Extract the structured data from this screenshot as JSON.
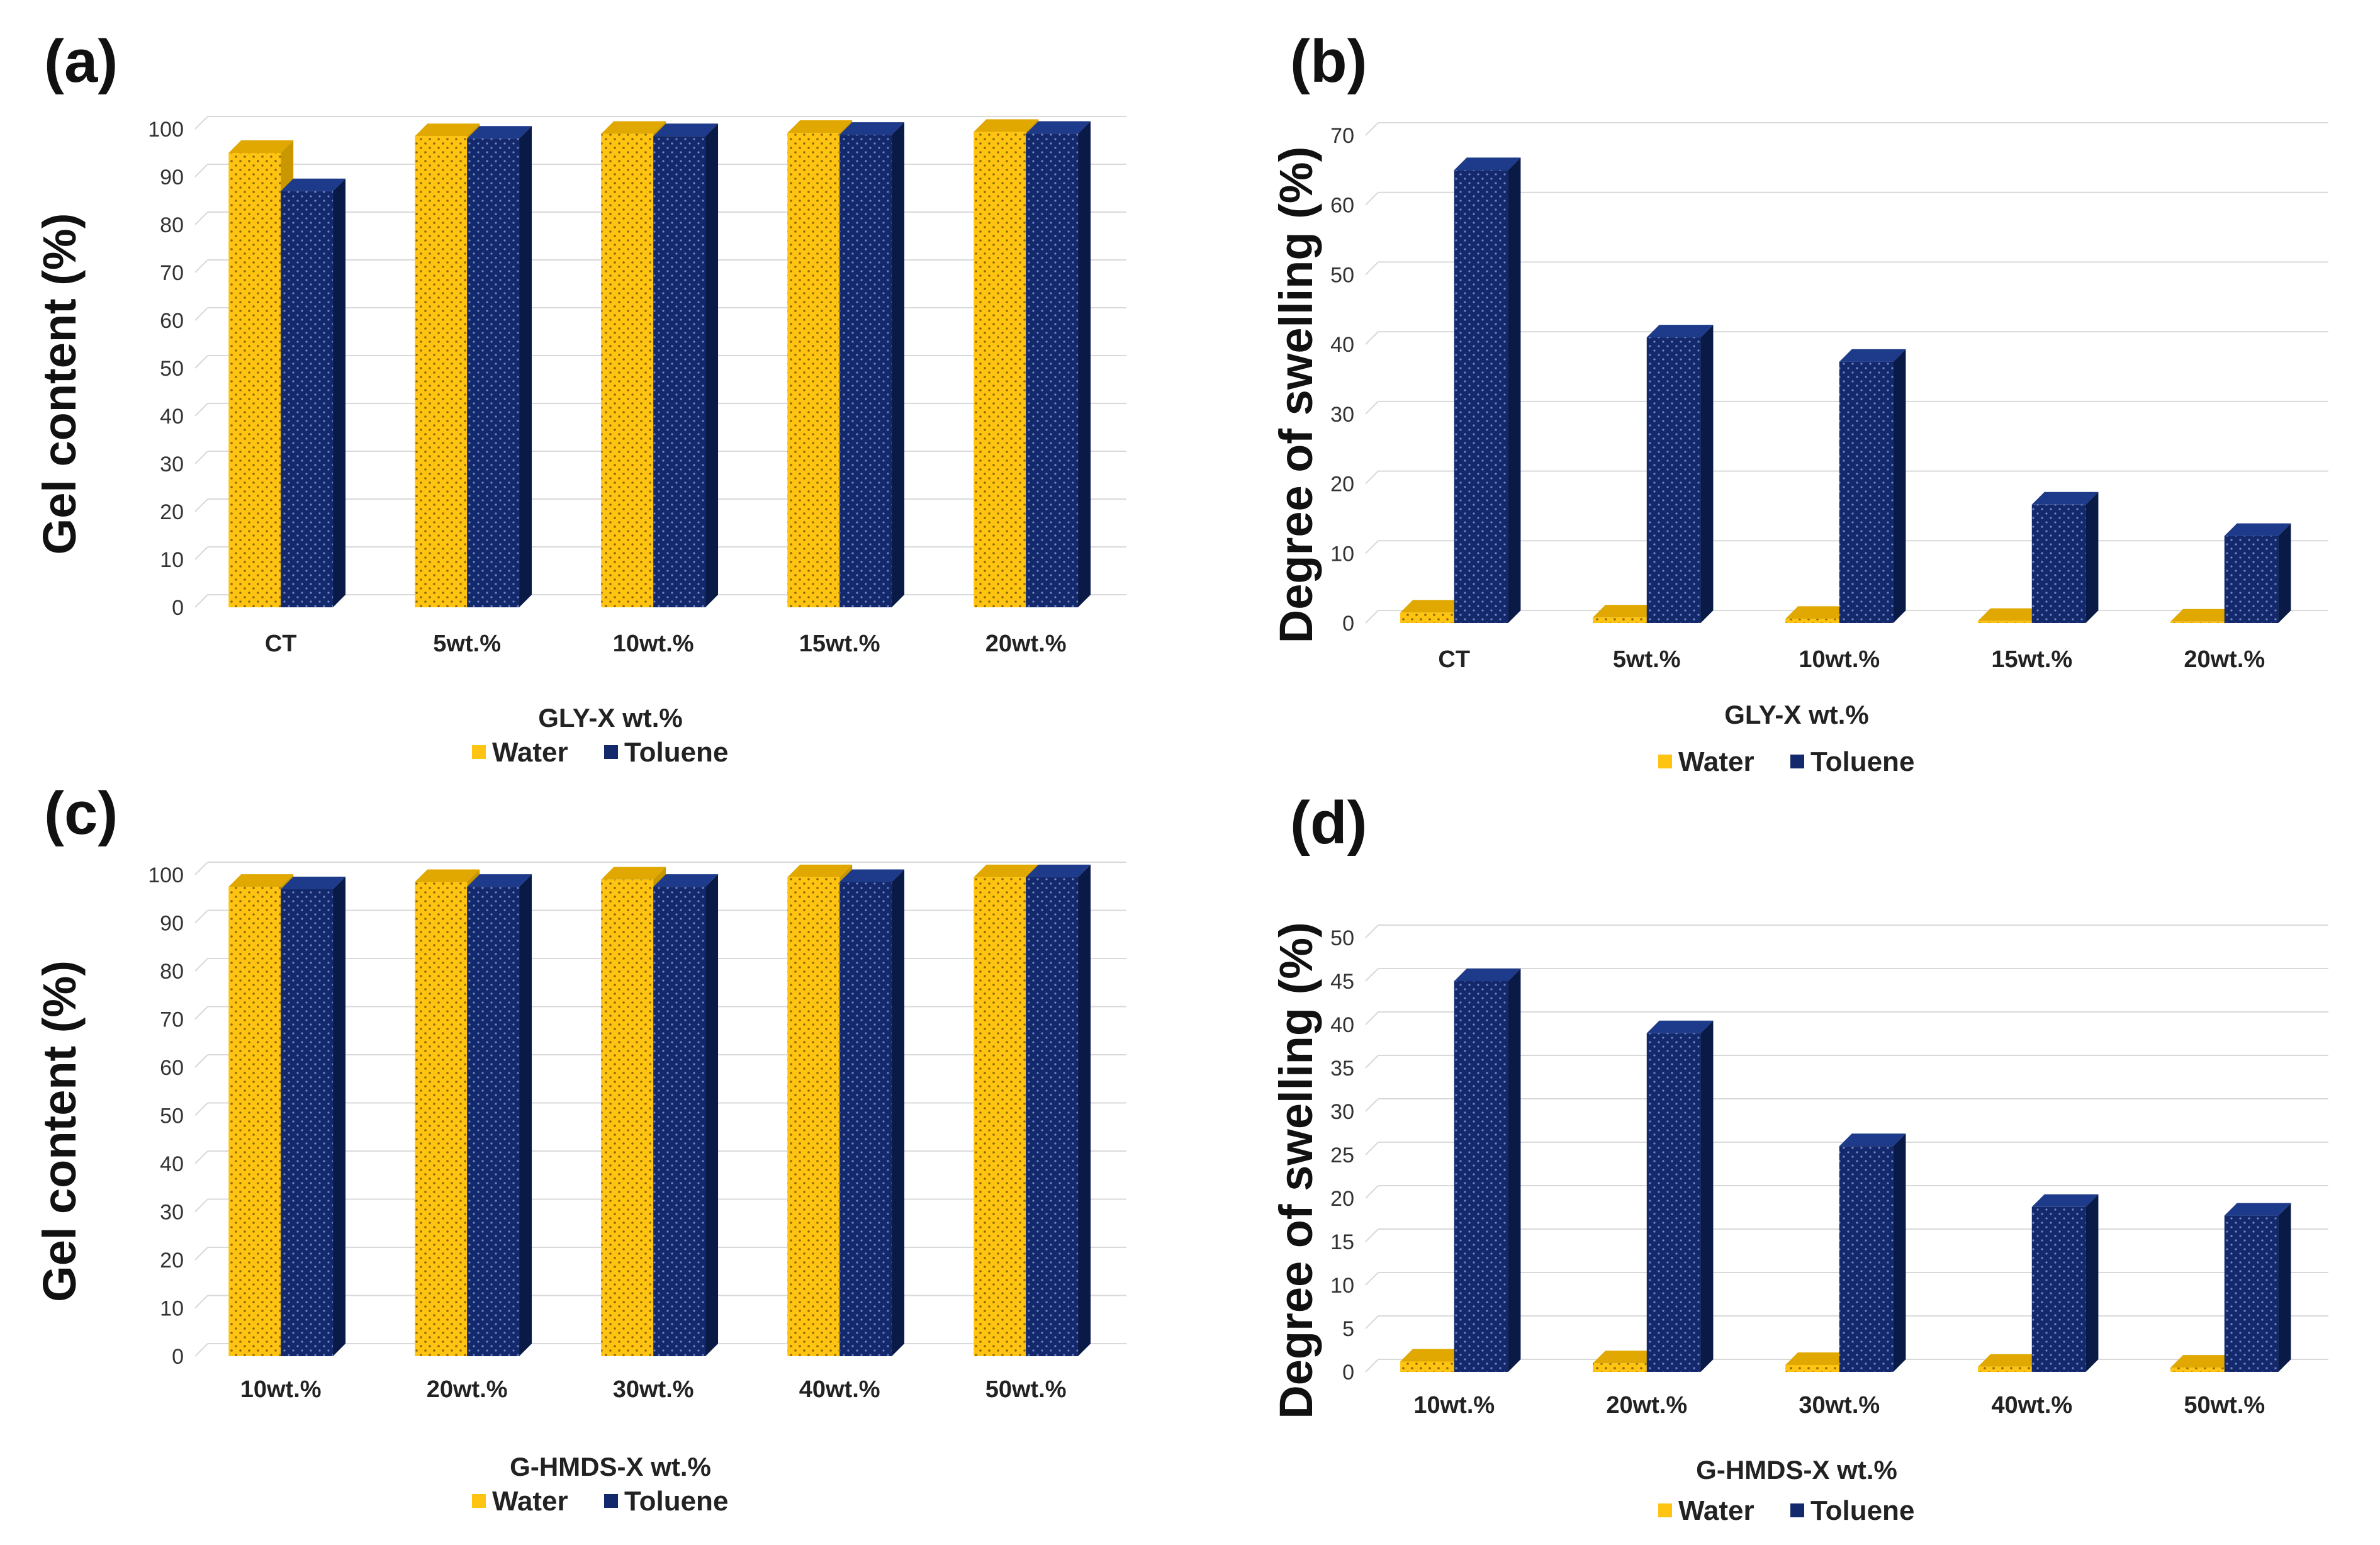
{
  "colors": {
    "water": "#FFC312",
    "water_dark": "#C99700",
    "water_top": "#E0A800",
    "toluene": "#13296B",
    "toluene_dark": "#0A1A47",
    "toluene_top": "#1E3A8A"
  },
  "chart_data": [
    {
      "panel": "(a)",
      "type": "bar",
      "ylabel": "Gel content (%)",
      "xlabel": "GLY-X wt.%",
      "categories": [
        "CT",
        "5wt.%",
        "10wt.%",
        "15wt.%",
        "20wt.%"
      ],
      "ylim": [
        0,
        100
      ],
      "yticks": [
        "0",
        "10",
        "20",
        "30",
        "40",
        "50",
        "60",
        "70",
        "80",
        "90",
        "100"
      ],
      "series": [
        {
          "name": "Water",
          "values": [
            95,
            98.5,
            99,
            99.2,
            99.4
          ]
        },
        {
          "name": "Toluene",
          "values": [
            87,
            98,
            98.5,
            98.8,
            99
          ]
        }
      ],
      "legend": "bottom",
      "grid": true
    },
    {
      "panel": "(b)",
      "type": "bar",
      "ylabel": "Degree of swelling (%)",
      "xlabel": "GLY-X wt.%",
      "categories": [
        "CT",
        "5wt.%",
        "10wt.%",
        "15wt.%",
        "20wt.%"
      ],
      "ylim": [
        0,
        70
      ],
      "yticks": [
        "0",
        "10",
        "20",
        "30",
        "40",
        "50",
        "60",
        "70"
      ],
      "series": [
        {
          "name": "Water",
          "values": [
            1.5,
            0.8,
            0.6,
            0.3,
            0.2
          ]
        },
        {
          "name": "Toluene",
          "values": [
            65,
            41,
            37.5,
            17,
            12.5
          ]
        }
      ],
      "legend": "bottom",
      "grid": true
    },
    {
      "panel": "(c)",
      "type": "bar",
      "ylabel": "Gel content (%)",
      "xlabel": "G-HMDS-X wt.%",
      "categories": [
        "10wt.%",
        "20wt.%",
        "30wt.%",
        "40wt.%",
        "50wt.%"
      ],
      "ylim": [
        0,
        100
      ],
      "yticks": [
        "0",
        "10",
        "20",
        "30",
        "40",
        "50",
        "60",
        "70",
        "80",
        "90",
        "100"
      ],
      "series": [
        {
          "name": "Water",
          "values": [
            97.5,
            98.5,
            99,
            99.5,
            99.5
          ]
        },
        {
          "name": "Toluene",
          "values": [
            97,
            97.5,
            97.5,
            98.5,
            99.5
          ]
        }
      ],
      "legend": "bottom",
      "grid": true
    },
    {
      "panel": "(d)",
      "type": "bar",
      "ylabel": "Degree of swelling (%)",
      "xlabel": "G-HMDS-X wt.%",
      "categories": [
        "10wt.%",
        "20wt.%",
        "30wt.%",
        "40wt.%",
        "50wt.%"
      ],
      "ylim": [
        0,
        50
      ],
      "yticks": [
        "0",
        "5",
        "10",
        "15",
        "20",
        "25",
        "30",
        "35",
        "40",
        "45",
        "50"
      ],
      "series": [
        {
          "name": "Water",
          "values": [
            1.2,
            1.0,
            0.8,
            0.6,
            0.5
          ]
        },
        {
          "name": "Toluene",
          "values": [
            45,
            39,
            26,
            19,
            18
          ]
        }
      ],
      "legend": "bottom",
      "grid": true
    }
  ]
}
